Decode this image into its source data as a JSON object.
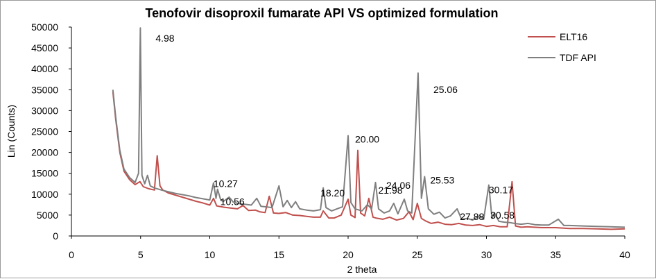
{
  "chart_data": {
    "type": "line",
    "title": "Tenofovir disoproxil fumarate API VS optimized formulation",
    "xlabel": "2 theta",
    "ylabel": "Lin (Counts)",
    "xlim": [
      0,
      40
    ],
    "ylim": [
      0,
      50000
    ],
    "xticks": [
      "0",
      "5",
      "10",
      "15",
      "20",
      "25",
      "30",
      "35",
      "40"
    ],
    "yticks": [
      "0",
      "5000",
      "10000",
      "15000",
      "20000",
      "25000",
      "30000",
      "35000",
      "40000",
      "45000",
      "50000"
    ],
    "legend_position": "top-right",
    "series": [
      {
        "name": "ELT16",
        "color": "#c0504d",
        "points": [
          [
            3.0,
            34500
          ],
          [
            3.2,
            28000
          ],
          [
            3.5,
            20000
          ],
          [
            3.8,
            15500
          ],
          [
            4.2,
            13500
          ],
          [
            4.6,
            12300
          ],
          [
            4.95,
            13000
          ],
          [
            5.2,
            11800
          ],
          [
            5.6,
            11300
          ],
          [
            6.0,
            11000
          ],
          [
            6.2,
            19200
          ],
          [
            6.4,
            12000
          ],
          [
            6.6,
            11000
          ],
          [
            7.0,
            10300
          ],
          [
            7.5,
            9800
          ],
          [
            8.0,
            9300
          ],
          [
            8.5,
            8800
          ],
          [
            9.0,
            8300
          ],
          [
            9.5,
            7900
          ],
          [
            10.0,
            7400
          ],
          [
            10.27,
            9000
          ],
          [
            10.5,
            7200
          ],
          [
            11.0,
            6900
          ],
          [
            11.5,
            6700
          ],
          [
            12.0,
            6500
          ],
          [
            12.4,
            7300
          ],
          [
            12.8,
            6100
          ],
          [
            13.3,
            6200
          ],
          [
            13.6,
            5800
          ],
          [
            14.0,
            5600
          ],
          [
            14.3,
            9500
          ],
          [
            14.6,
            5500
          ],
          [
            15.0,
            5400
          ],
          [
            15.5,
            5600
          ],
          [
            16.0,
            5000
          ],
          [
            16.5,
            4900
          ],
          [
            17.0,
            4700
          ],
          [
            17.5,
            4500
          ],
          [
            18.0,
            4500
          ],
          [
            18.2,
            6000
          ],
          [
            18.6,
            4300
          ],
          [
            19.0,
            4300
          ],
          [
            19.5,
            5000
          ],
          [
            20.0,
            8800
          ],
          [
            20.2,
            5000
          ],
          [
            20.5,
            4400
          ],
          [
            20.7,
            20500
          ],
          [
            20.9,
            5500
          ],
          [
            21.2,
            4800
          ],
          [
            21.5,
            9000
          ],
          [
            21.8,
            4500
          ],
          [
            22.0,
            4300
          ],
          [
            22.5,
            4000
          ],
          [
            23.0,
            4500
          ],
          [
            23.5,
            3800
          ],
          [
            24.0,
            4200
          ],
          [
            24.4,
            5800
          ],
          [
            24.7,
            3900
          ],
          [
            25.0,
            7800
          ],
          [
            25.3,
            4200
          ],
          [
            25.6,
            3600
          ],
          [
            26.0,
            3000
          ],
          [
            26.5,
            3300
          ],
          [
            27.0,
            2800
          ],
          [
            27.5,
            2700
          ],
          [
            28.0,
            3000
          ],
          [
            28.5,
            2600
          ],
          [
            29.0,
            2500
          ],
          [
            29.5,
            2700
          ],
          [
            30.0,
            2300
          ],
          [
            30.5,
            2500
          ],
          [
            31.0,
            2200
          ],
          [
            31.5,
            2200
          ],
          [
            31.85,
            13000
          ],
          [
            32.1,
            2400
          ],
          [
            32.5,
            2100
          ],
          [
            33.0,
            2200
          ],
          [
            34.0,
            2000
          ],
          [
            35.0,
            2000
          ],
          [
            36.0,
            1800
          ],
          [
            37.0,
            1800
          ],
          [
            38.0,
            1700
          ],
          [
            39.0,
            1600
          ],
          [
            40.0,
            1700
          ]
        ]
      },
      {
        "name": "TDF API",
        "color": "#7f7f7f",
        "points": [
          [
            3.0,
            35000
          ],
          [
            3.2,
            28500
          ],
          [
            3.5,
            20500
          ],
          [
            3.8,
            16000
          ],
          [
            4.2,
            14000
          ],
          [
            4.6,
            12800
          ],
          [
            4.85,
            15000
          ],
          [
            4.98,
            49800
          ],
          [
            5.1,
            14500
          ],
          [
            5.3,
            12500
          ],
          [
            5.5,
            14500
          ],
          [
            5.7,
            12000
          ],
          [
            6.0,
            11500
          ],
          [
            6.5,
            11000
          ],
          [
            7.0,
            10600
          ],
          [
            7.5,
            10200
          ],
          [
            8.0,
            9900
          ],
          [
            8.5,
            9600
          ],
          [
            9.0,
            9200
          ],
          [
            9.5,
            8900
          ],
          [
            10.0,
            8600
          ],
          [
            10.27,
            12700
          ],
          [
            10.45,
            9000
          ],
          [
            10.56,
            11200
          ],
          [
            10.8,
            8500
          ],
          [
            11.0,
            8300
          ],
          [
            11.4,
            9300
          ],
          [
            11.7,
            8100
          ],
          [
            12.0,
            7800
          ],
          [
            12.5,
            7600
          ],
          [
            13.0,
            7400
          ],
          [
            13.4,
            9000
          ],
          [
            13.7,
            7100
          ],
          [
            14.0,
            7000
          ],
          [
            14.5,
            6800
          ],
          [
            15.0,
            12000
          ],
          [
            15.3,
            7000
          ],
          [
            15.6,
            8500
          ],
          [
            15.9,
            6800
          ],
          [
            16.2,
            8200
          ],
          [
            16.5,
            6500
          ],
          [
            17.0,
            6200
          ],
          [
            17.5,
            6000
          ],
          [
            18.0,
            6300
          ],
          [
            18.2,
            11500
          ],
          [
            18.4,
            6800
          ],
          [
            18.8,
            6000
          ],
          [
            19.2,
            6500
          ],
          [
            19.6,
            7000
          ],
          [
            20.0,
            24000
          ],
          [
            20.2,
            8000
          ],
          [
            20.5,
            6500
          ],
          [
            20.8,
            6200
          ],
          [
            21.0,
            6000
          ],
          [
            21.4,
            7500
          ],
          [
            21.7,
            6500
          ],
          [
            21.98,
            12800
          ],
          [
            22.2,
            6500
          ],
          [
            22.6,
            5500
          ],
          [
            23.0,
            6000
          ],
          [
            23.3,
            7800
          ],
          [
            23.6,
            5300
          ],
          [
            24.06,
            8800
          ],
          [
            24.3,
            6000
          ],
          [
            24.6,
            5500
          ],
          [
            25.06,
            39000
          ],
          [
            25.3,
            9000
          ],
          [
            25.53,
            14200
          ],
          [
            25.8,
            6500
          ],
          [
            26.2,
            5200
          ],
          [
            26.6,
            5700
          ],
          [
            27.0,
            4300
          ],
          [
            27.4,
            4800
          ],
          [
            27.88,
            6500
          ],
          [
            28.2,
            4000
          ],
          [
            28.6,
            4200
          ],
          [
            29.0,
            3800
          ],
          [
            29.5,
            4800
          ],
          [
            29.8,
            4000
          ],
          [
            30.17,
            12200
          ],
          [
            30.4,
            4200
          ],
          [
            30.58,
            5500
          ],
          [
            30.9,
            3500
          ],
          [
            31.3,
            3300
          ],
          [
            31.7,
            3200
          ],
          [
            32.0,
            3000
          ],
          [
            32.5,
            2800
          ],
          [
            33.0,
            3000
          ],
          [
            33.5,
            2700
          ],
          [
            34.0,
            2600
          ],
          [
            34.5,
            2600
          ],
          [
            35.2,
            4000
          ],
          [
            35.6,
            2500
          ],
          [
            36.0,
            2500
          ],
          [
            37.0,
            2400
          ],
          [
            38.0,
            2300
          ],
          [
            39.0,
            2200
          ],
          [
            40.0,
            2100
          ]
        ]
      }
    ],
    "annotations": [
      {
        "text": "4.98",
        "x": 4.98,
        "y": 49800
      },
      {
        "text": "10.27",
        "x": 10.27,
        "y": 12700
      },
      {
        "text": "10.56",
        "x": 10.56,
        "y": 11200
      },
      {
        "text": "18.20",
        "x": 18.2,
        "y": 11500
      },
      {
        "text": "20.00",
        "x": 20.0,
        "y": 24000
      },
      {
        "text": "21.98",
        "x": 21.98,
        "y": 12800
      },
      {
        "text": "24.06",
        "x": 24.06,
        "y": 8800
      },
      {
        "text": "25.06",
        "x": 25.06,
        "y": 39000
      },
      {
        "text": "25.53",
        "x": 25.53,
        "y": 14200
      },
      {
        "text": "27.88",
        "x": 27.88,
        "y": 6500
      },
      {
        "text": "30.17",
        "x": 30.17,
        "y": 12200
      },
      {
        "text": "30.58",
        "x": 30.58,
        "y": 5500
      }
    ]
  }
}
